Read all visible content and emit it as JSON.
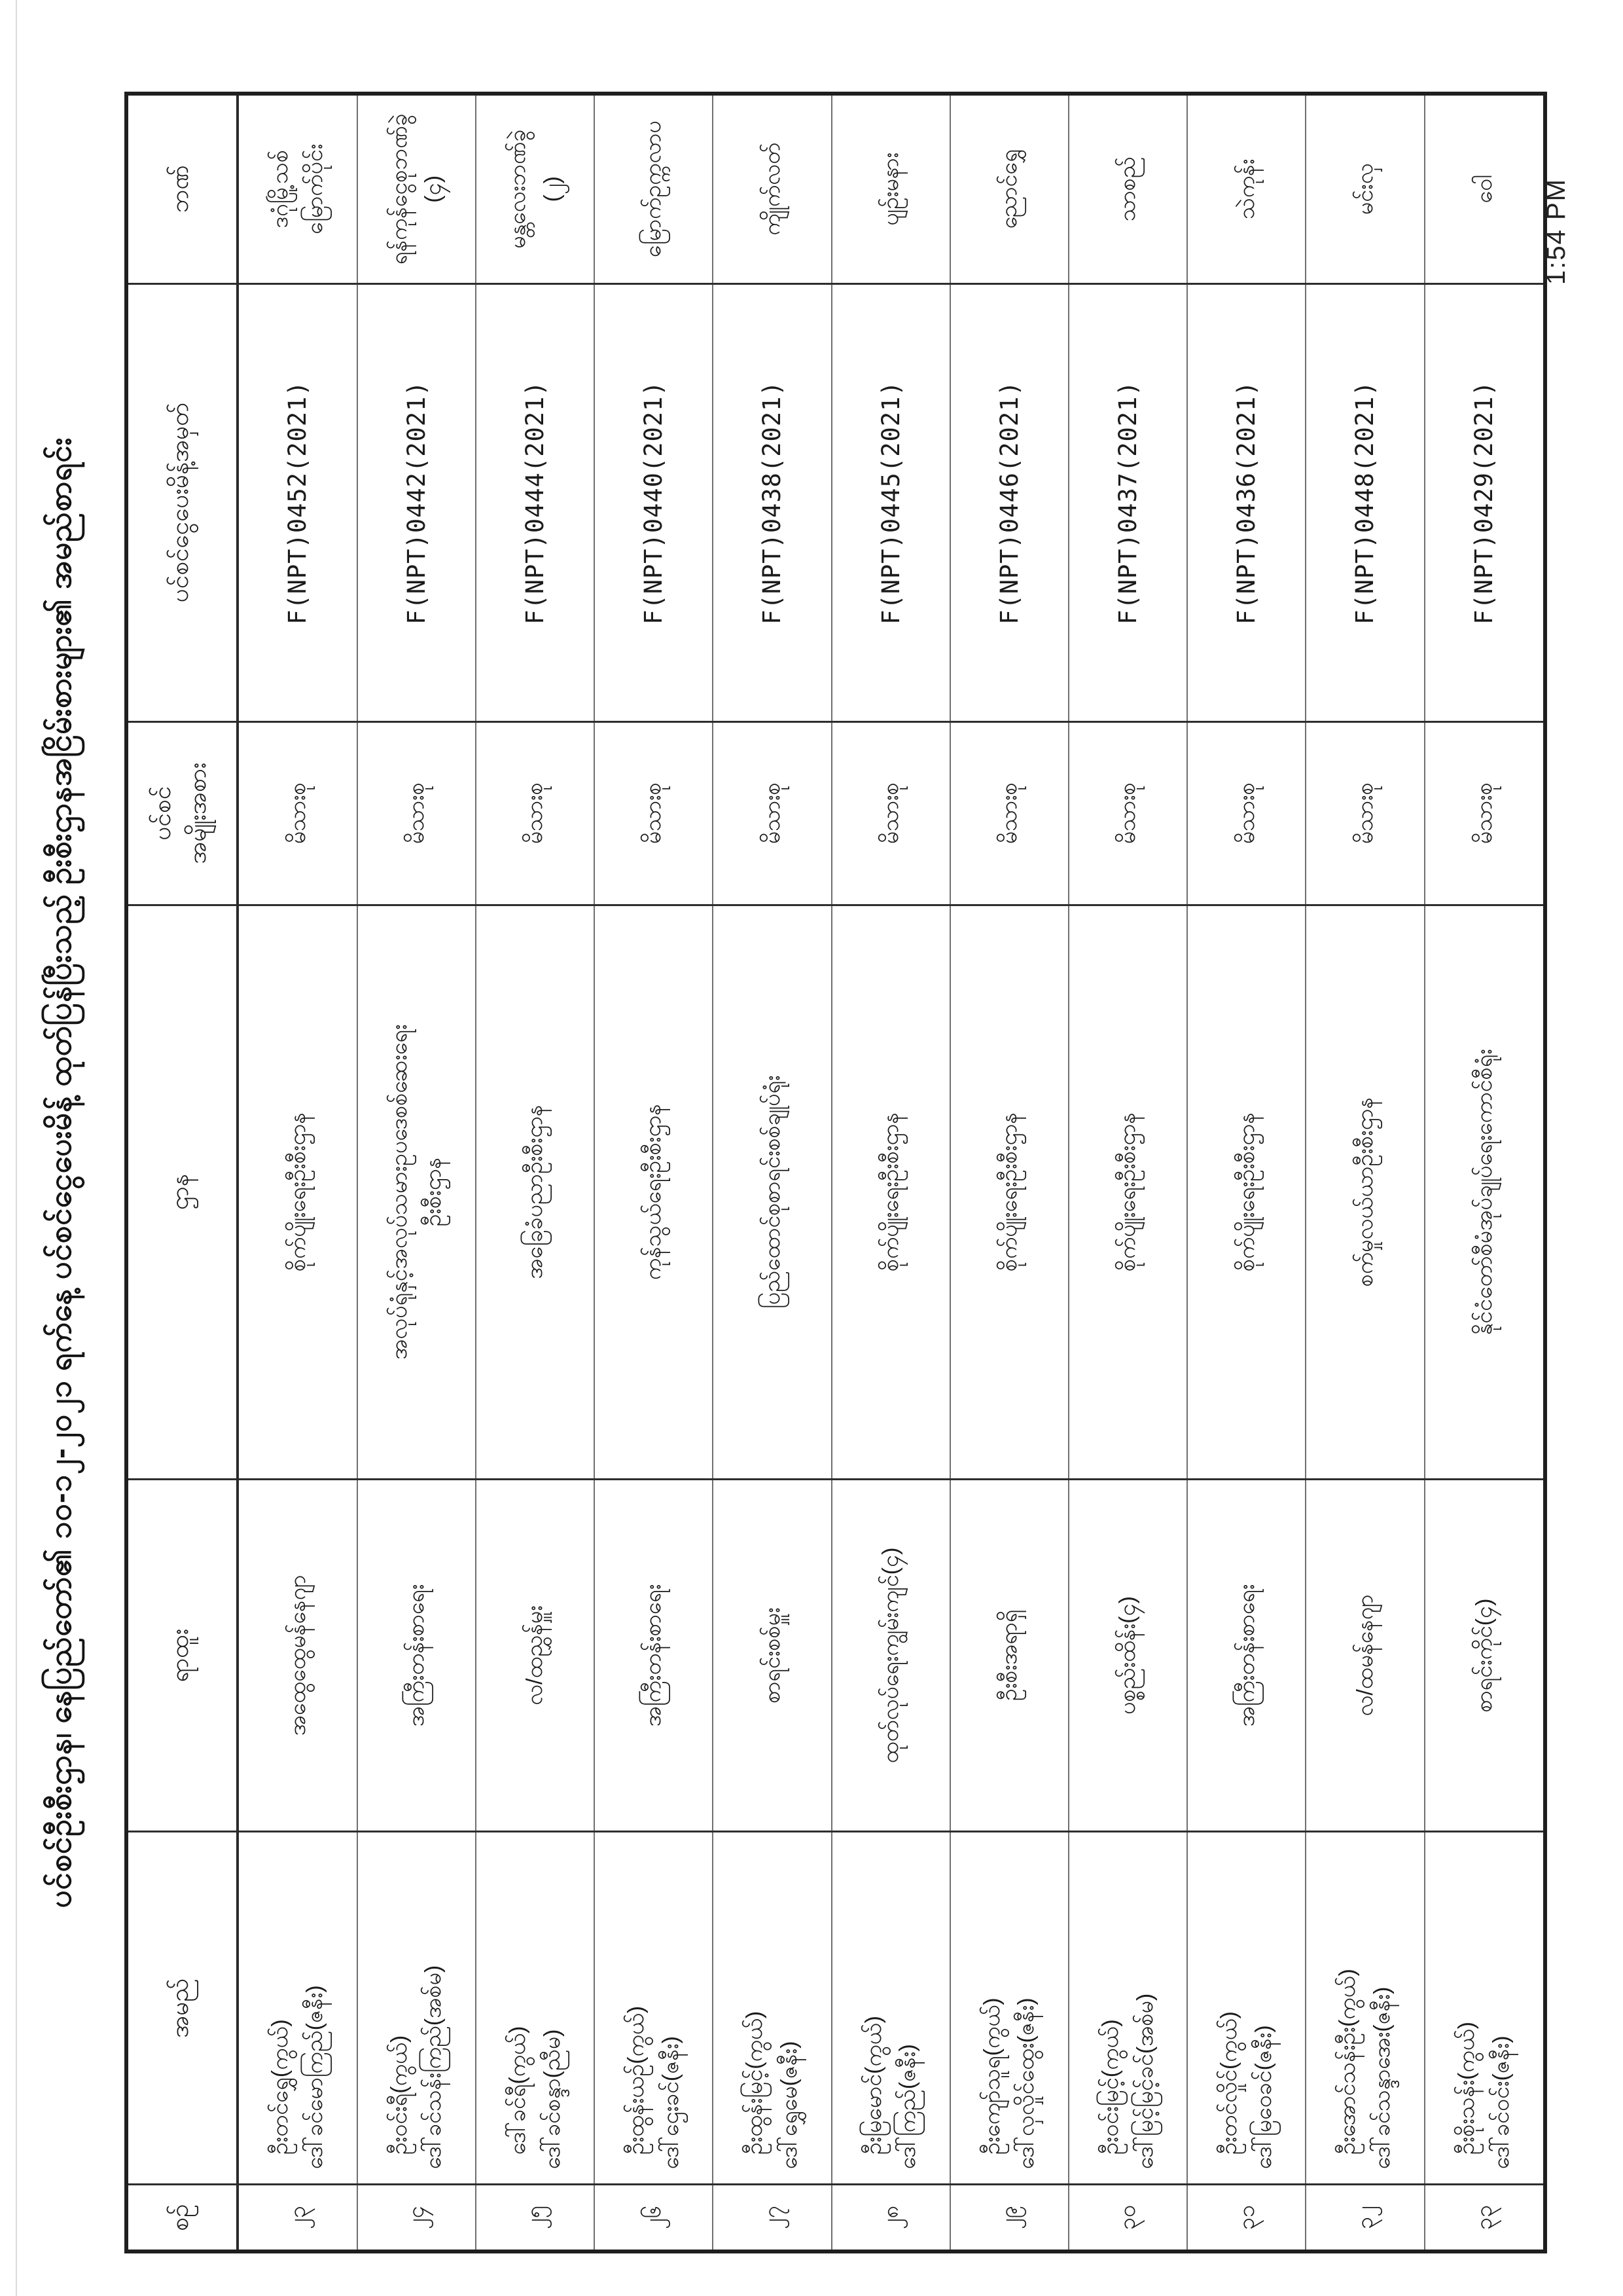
{
  "page": {
    "clock": "1:54 PM"
  },
  "title": "ပင်စင်ဦးစီးဌာန၊ နေပြည်တော်၏ ၁၀-၁၂-၂၀၂၁ ရက်နေ့ ပင်စင်ငွေပေးမိန့် ထုတ်ပြန်ပြီးသည့် ဦးစီးဌာနအငြိမ်းစားများ၏ အမည်စာရင်း",
  "table": {
    "headers": {
      "serial": "စဉ်",
      "name": "အမည်",
      "position": "ရာထူး",
      "department": "ဌာန",
      "pension_type_lines": [
        "ပင်စင်",
        "အမျိုးအစား"
      ],
      "payment_order": "ပင်စင်ငွေပေးမိန့်အမှတ်",
      "bank": "ဘဏ်"
    },
    "rows": [
      {
        "serial": "၂၃",
        "name_lines": [
          "ဦးတင်ရွှေ(ကွယ်)",
          "ဒေါ်ခင်မောကြည်(ဇနီး)"
        ],
        "position": "အထွေထွေမန်နေဂျာ",
        "department_lines": [
          "စိုက်ပျိုးရေးဦးစီးဌာန"
        ],
        "pension_type": "မိသားစု",
        "payment_order": "F(NPT)0452(2021)",
        "bank_lines": [
          "ဒဂုံမြို့သစ်",
          "မြောက်ပိုင်း"
        ]
      },
      {
        "serial": "၂၄",
        "name_lines": [
          "ဦးဝင်းရီ(ကွယ်)",
          "ဒေါ်ခင်သန်းကြည်(အစ်မ)"
        ],
        "position": "အကြီးတန်းစာရေး",
        "department_lines": [
          "အလုပ်ရုံနှင့်အလုပ်သမားဥပဒေစစ်ဆေးရေး",
          "ဦးစီးဌာန"
        ],
        "pension_type": "မိသားစု",
        "payment_order": "F(NPT)0442(2021)",
        "bank_lines": [
          "ရန်ကုန်ငွေစုဘဏ်ခွဲ",
          "(၄)"
        ]
      },
      {
        "serial": "၂၅",
        "name_lines": [
          "ဒေါ်ခင်ရီ(ကွယ်)",
          "ဒေါ်ခင်စန္ဒာ(ညီမ)"
        ],
        "position": "လ/ထညွှန်မှူး",
        "department_lines": [
          "အခြေခံပညာဦးစီးဌာန"
        ],
        "pension_type": "မိသားစု",
        "payment_order": "F(NPT)0444(2021)",
        "bank_lines": [
          "မန္တလေးဘဏ်ခွဲ",
          "(၂)"
        ]
      },
      {
        "serial": "၂၆",
        "name_lines": [
          "ဦးထွန်းယဉ်(ကွယ်)",
          "ဒေါ်ဌေးခင်(ဇနီး)"
        ],
        "position": "အကြီးတန်းစာရေး",
        "department_lines": [
          "ကုန်သွယ်ရေးဦးစီးဌာန"
        ],
        "pension_type": "မိသားစု",
        "payment_order": "F(NPT)0440(2021)",
        "bank_lines": [
          "မြောက်ဥက္ကလာပ"
        ]
      },
      {
        "serial": "၂၇",
        "name_lines": [
          "ဦးထွန်းမြင့်(ကွယ်)",
          "ဒေါ်ရွှေမေ(ဇနီး)"
        ],
        "position": "စာရင်းစစ်မှူး",
        "department_lines": [
          "ပြည်ထောင်စုစာရင်းစစ်ချုပ်ရုံး"
        ],
        "pension_type": "မိသားစု",
        "payment_order": "F(NPT)0438(2021)",
        "bank_lines": [
          "ကျိုက်လတ်"
        ]
      },
      {
        "serial": "၂၈",
        "name_lines": [
          "ဦးမြမောင်(ကွယ်)",
          "ဒေါ်ကြည်(ဇနီး)"
        ],
        "position": "ထုတ်လုပ်ရေးကျွမ်းကျင်(၄)",
        "department_lines": [
          "စိုက်ပျိုးရေးဦးစီးဌာန"
        ],
        "pension_type": "မိသားစု",
        "payment_order": "F(NPT)0445(2021)",
        "bank_lines": [
          "ပျဉ်းမနား"
        ]
      },
      {
        "serial": "၂၉",
        "name_lines": [
          "ဦးကျော်သူရ(ကွယ်)",
          "ဒေါ်လှလှိုင်ထွေး(ဇနီး)"
        ],
        "position": "ဦးစီးအရာရှိ",
        "department_lines": [
          "စိုက်ပျိုးရေးဦးစီးဌာန"
        ],
        "pension_type": "မိသားစု",
        "payment_order": "F(NPT)0446(2021)",
        "bank_lines": [
          "ညောင်ရွှေ"
        ]
      },
      {
        "serial": "၃၀",
        "name_lines": [
          "ဦးဝင်းမြင့်(ကွယ်)",
          "ဒေါ်မြင့်မြင့်ခင်(အစ်မ)"
        ],
        "position": "ပစ္စည်းထိန်း(၄)",
        "department_lines": [
          "စိုက်ပျိုးရေးဦးစီးဌာန"
        ],
        "pension_type": "မိသားစု",
        "payment_order": "F(NPT)0437(2021)",
        "bank_lines": [
          "သာစည်"
        ]
      },
      {
        "serial": "၃၁",
        "name_lines": [
          "ဦးတင်လှိုင်(ကွယ်)",
          "ဒေါ်မြဝေခင်(ဇနီး)"
        ],
        "position": "အကြီးတန်းစာရေး",
        "department_lines": [
          "စိုက်ပျိုးရေးဦးစီးဌာန"
        ],
        "pension_type": "မိသားစု",
        "payment_order": "F(NPT)0436(2021)",
        "bank_lines": [
          "သဲကုန်း"
        ]
      },
      {
        "serial": "၃၂",
        "name_lines": [
          "ဦးအောင်သန်းဦး(ကွယ်)",
          "ဒေါ်ခင်သန္ဒာအေး(ဇနီး)"
        ],
        "position": "လ/ထမန်နေဂျာ",
        "department_lines": [
          "စက်မှုလယ်ယာဦးစီးဌာန"
        ],
        "pension_type": "မိသားစု",
        "payment_order": "F(NPT)0448(2021)",
        "bank_lines": [
          "မင်းလှ"
        ]
      },
      {
        "serial": "၃၃",
        "name_lines": [
          "ဦးစိုးသန်း(ကွယ်)",
          "ဒေါ်ခင်ဝင်း(ဇနီး)"
        ],
        "position": "စာရင်းကိုင်(၄)",
        "department_lines": [
          "နိုင်ငံတော်စီမံအုပ်ချုပ်ရေးကောင်စီရုံး"
        ],
        "pension_type": "မိသားစု",
        "payment_order": "F(NPT)0429(2021)",
        "bank_lines": [
          "ဝေါ"
        ]
      }
    ]
  }
}
